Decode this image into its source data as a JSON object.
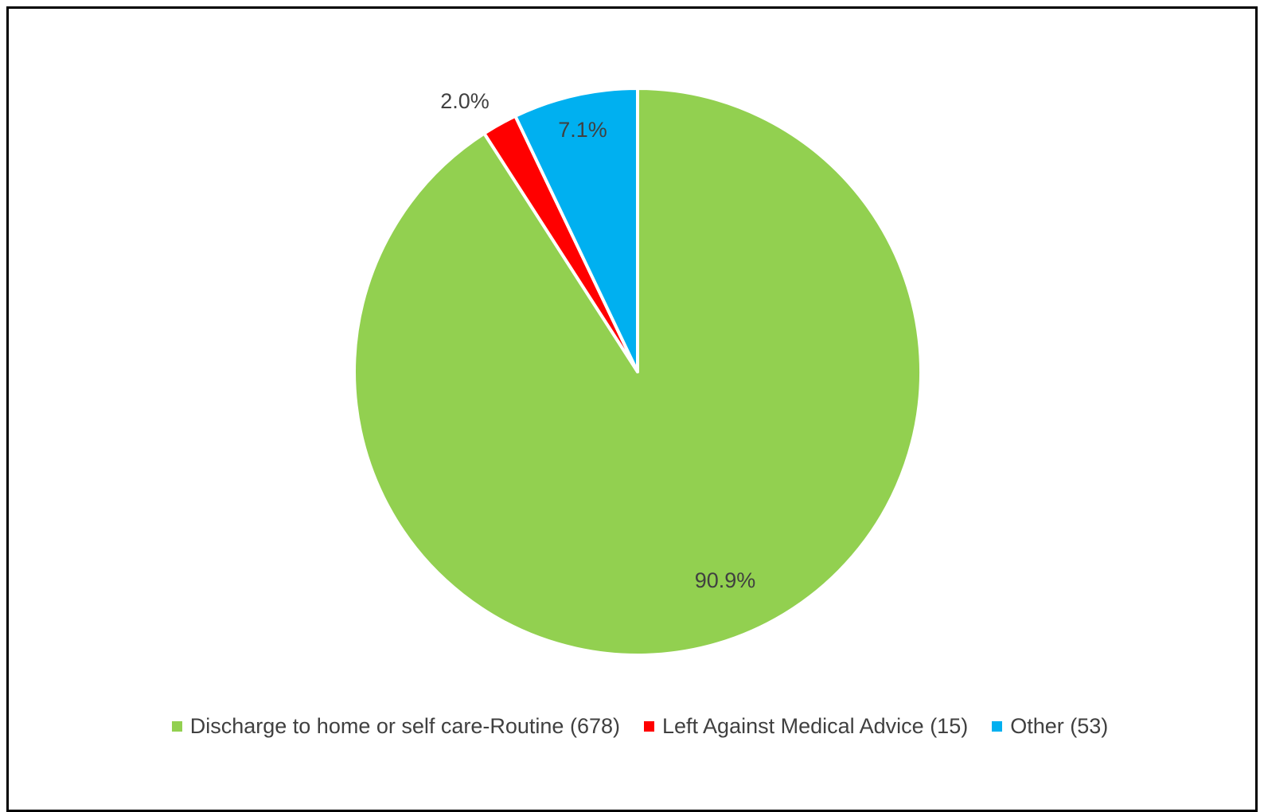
{
  "chart_data": {
    "type": "pie",
    "title": "",
    "start_angle_deg": 0,
    "direction": "clockwise",
    "slices": [
      {
        "label": "Discharge to home or self care-Routine (678)",
        "value": 90.9,
        "count": 678,
        "data_label": "90.9%",
        "color": "#92D050"
      },
      {
        "label": "Left Against Medical Advice (15)",
        "value": 2.0,
        "count": 15,
        "data_label": "2.0%",
        "color": "#FF0000"
      },
      {
        "label": "Other (53)",
        "value": 7.1,
        "count": 53,
        "data_label": "7.1%",
        "color": "#00B0F0"
      }
    ],
    "legend_position": "bottom",
    "label_color": "#404040",
    "slice_border_color": "#FFFFFF"
  }
}
